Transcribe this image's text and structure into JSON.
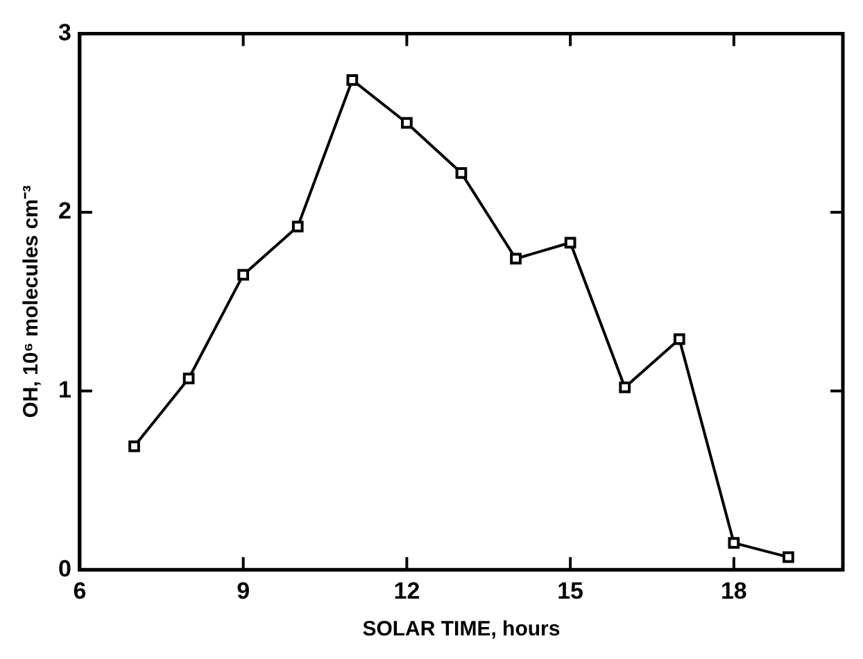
{
  "chart_data": {
    "type": "line",
    "xlabel": "SOLAR TIME, hours",
    "ylabel": "OH, 10⁶ molecules cm⁻³",
    "x": [
      7,
      8,
      9,
      10,
      11,
      12,
      13,
      14,
      15,
      16,
      17,
      18,
      19
    ],
    "series": [
      {
        "color": "#000000",
        "values": [
          0.69,
          1.07,
          1.65,
          1.92,
          2.74,
          2.5,
          2.22,
          1.74,
          1.83,
          1.02,
          1.29,
          0.15,
          0.07
        ]
      }
    ],
    "xlim": [
      6,
      20
    ],
    "xticks": [
      6,
      9,
      12,
      15,
      18
    ],
    "ylim": [
      0,
      3
    ],
    "yticks": [
      0,
      1,
      2,
      3
    ],
    "grid": false,
    "legend": false,
    "marker": "square",
    "line_style": "solid"
  }
}
